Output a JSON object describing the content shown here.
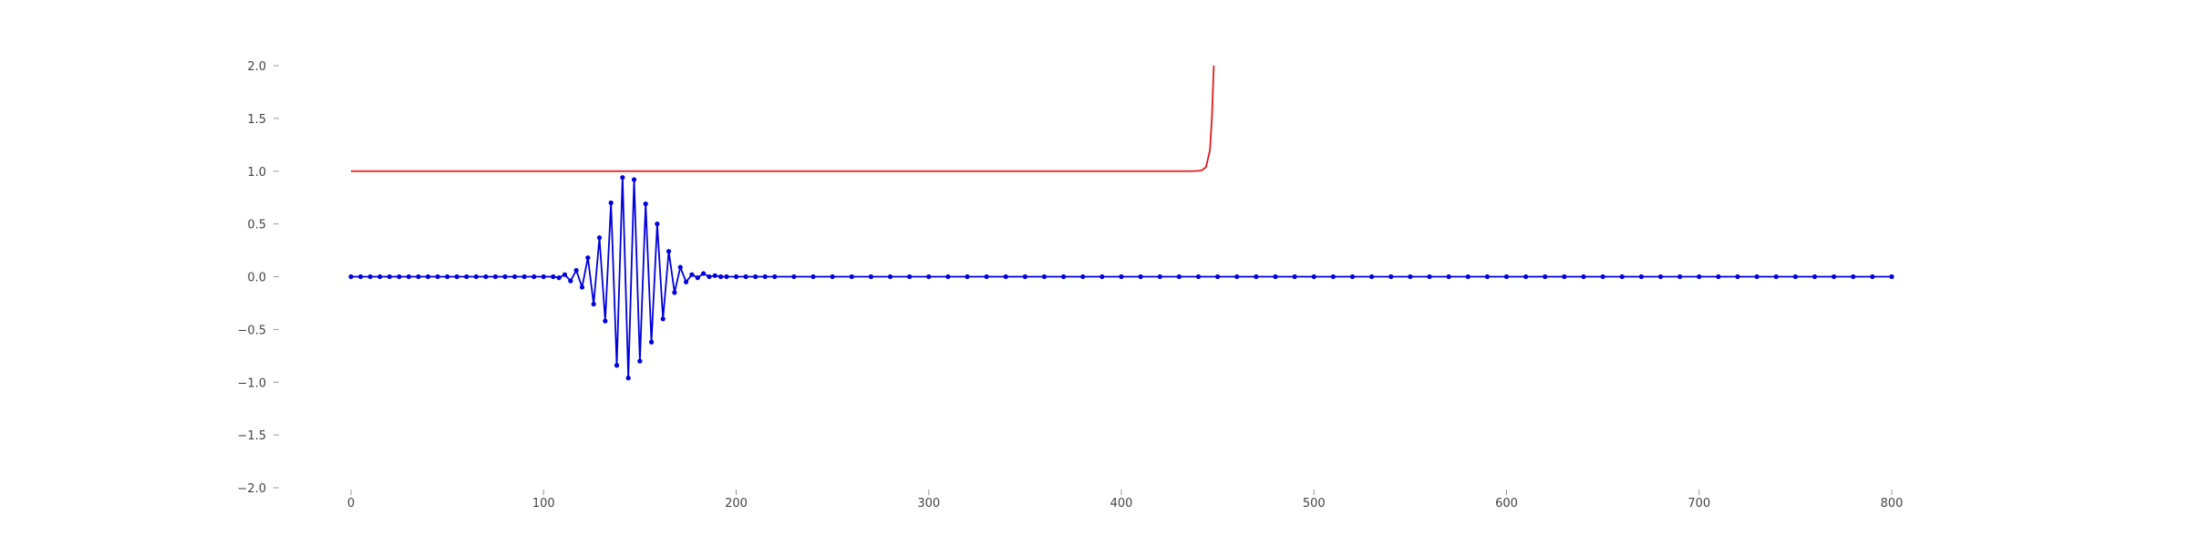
{
  "chart_data": {
    "type": "line",
    "title": "",
    "xlabel": "",
    "ylabel": "",
    "xlim": [
      0,
      800
    ],
    "ylim": [
      -2.0,
      2.0
    ],
    "grid": false,
    "legend": "none",
    "x_ticks": [
      {
        "value": 0,
        "label": "0"
      },
      {
        "value": 100,
        "label": "100"
      },
      {
        "value": 200,
        "label": "200"
      },
      {
        "value": 300,
        "label": "300"
      },
      {
        "value": 400,
        "label": "400"
      },
      {
        "value": 500,
        "label": "500"
      },
      {
        "value": 600,
        "label": "600"
      },
      {
        "value": 700,
        "label": "700"
      },
      {
        "value": 800,
        "label": "800"
      }
    ],
    "y_ticks": [
      {
        "value": 2.0,
        "label": "2.0"
      },
      {
        "value": 1.5,
        "label": "1.5"
      },
      {
        "value": 1.0,
        "label": "1.0"
      },
      {
        "value": 0.5,
        "label": "0.5"
      },
      {
        "value": 0.0,
        "label": "0.0"
      },
      {
        "value": -0.5,
        "label": "−0.5"
      },
      {
        "value": -1.0,
        "label": "−1.0"
      },
      {
        "value": -1.5,
        "label": "−1.5"
      },
      {
        "value": -2.0,
        "label": "−2.0"
      }
    ],
    "series": [
      {
        "color": "#e41a1c",
        "markers": false,
        "x": [
          0,
          100,
          200,
          300,
          400,
          420,
          430,
          435,
          438,
          440,
          442,
          444,
          446,
          447,
          448
        ],
        "y": [
          1.0,
          1.0,
          1.0,
          1.0,
          1.0,
          1.0,
          1.0,
          1.0,
          1.001,
          1.003,
          1.01,
          1.04,
          1.2,
          1.5,
          2.0
        ]
      },
      {
        "color": "#0000dd",
        "markers": true,
        "x": [
          0,
          5,
          10,
          15,
          20,
          25,
          30,
          35,
          40,
          45,
          50,
          55,
          60,
          65,
          70,
          75,
          80,
          85,
          90,
          95,
          100,
          105,
          108,
          111,
          114,
          117,
          120,
          123,
          126,
          129,
          132,
          135,
          138,
          141,
          144,
          147,
          150,
          153,
          156,
          159,
          162,
          165,
          168,
          171,
          174,
          177,
          180,
          183,
          186,
          189,
          192,
          195,
          200,
          205,
          210,
          215,
          220,
          230,
          240,
          250,
          260,
          270,
          280,
          290,
          300,
          310,
          320,
          330,
          340,
          350,
          360,
          370,
          380,
          390,
          400,
          410,
          420,
          430,
          440,
          450,
          460,
          470,
          480,
          490,
          500,
          510,
          520,
          530,
          540,
          550,
          560,
          570,
          580,
          590,
          600,
          610,
          620,
          630,
          640,
          650,
          660,
          670,
          680,
          690,
          700,
          710,
          720,
          730,
          740,
          750,
          760,
          770,
          780,
          790,
          800
        ],
        "y": [
          0,
          0,
          0,
          0,
          0,
          0,
          0,
          0,
          0,
          0,
          0,
          0,
          0,
          0,
          0,
          0,
          0,
          0,
          0,
          0,
          0,
          0,
          -0.01,
          0.02,
          -0.04,
          0.06,
          -0.1,
          0.18,
          -0.26,
          0.37,
          -0.42,
          0.7,
          -0.84,
          0.94,
          -0.96,
          0.92,
          -0.8,
          0.69,
          -0.62,
          0.5,
          -0.4,
          0.24,
          -0.15,
          0.09,
          -0.05,
          0.02,
          -0.01,
          0.03,
          0,
          0.01,
          0,
          0,
          0,
          0,
          0,
          0,
          0,
          0,
          0,
          0,
          0,
          0,
          0,
          0,
          0,
          0,
          0,
          0,
          0,
          0,
          0,
          0,
          0,
          0,
          0,
          0,
          0,
          0,
          0,
          0,
          0,
          0,
          0,
          0,
          0,
          0,
          0,
          0,
          0,
          0,
          0,
          0,
          0,
          0,
          0,
          0,
          0,
          0,
          0,
          0,
          0,
          0,
          0,
          0,
          0,
          0,
          0,
          0,
          0,
          0,
          0,
          0,
          0,
          0,
          0
        ]
      }
    ]
  }
}
